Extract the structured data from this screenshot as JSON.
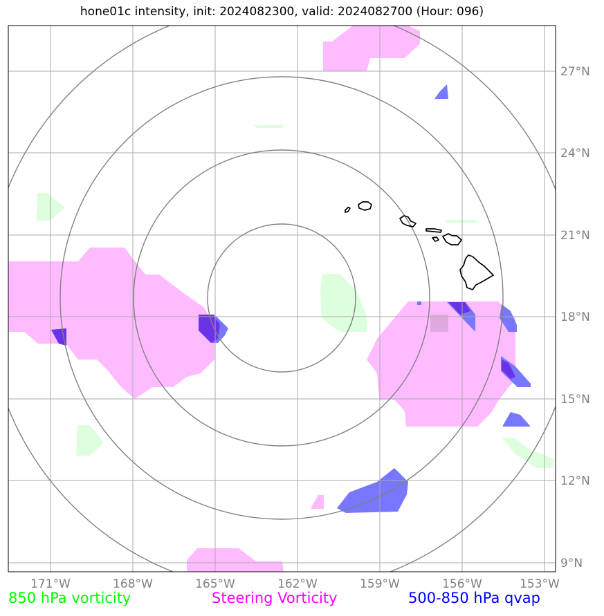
{
  "title": "hone01c intensity, init: 2024082300, valid: 2024082700 (Hour: 096)",
  "map": {
    "lon_ticks": [
      "171°W",
      "168°W",
      "165°W",
      "162°W",
      "159°W",
      "156°W",
      "153°W"
    ],
    "lat_ticks": [
      "27°N",
      "24°N",
      "21°N",
      "18°N",
      "15°N",
      "12°N",
      "9°N"
    ],
    "colors": {
      "vorticity_850": "#ddffdd",
      "steering_vorticity": "#ffbbff",
      "qvap": "#7777ff",
      "qvap_overlap": "#6a33e8",
      "range_rings": "#808080",
      "grid": "#aaaaaa",
      "coastline": "#000000"
    }
  },
  "legend": {
    "vorticity_850": "850 hPa vorticity",
    "steering_vorticity": "Steering Vorticity",
    "qvap": "500-850 hPa qvap"
  }
}
